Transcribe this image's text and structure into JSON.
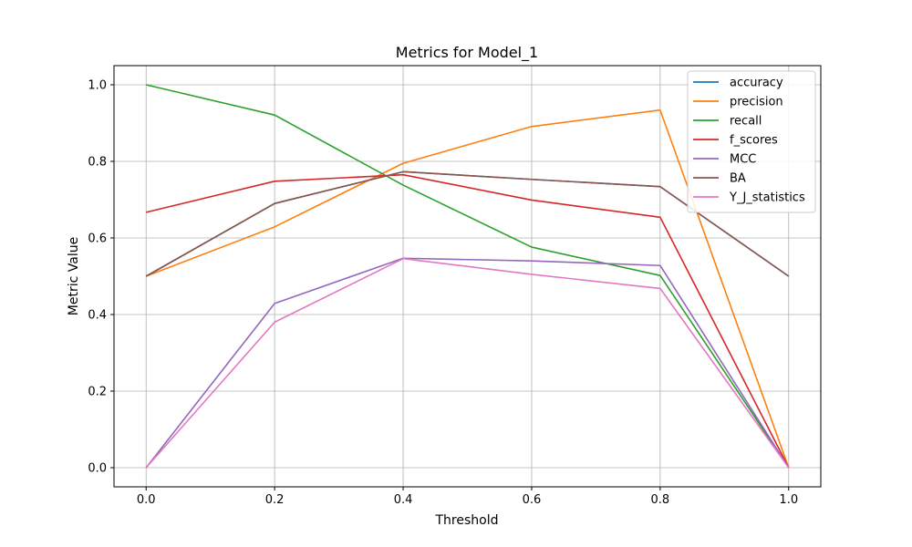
{
  "chart_data": {
    "type": "line",
    "title": "Metrics for Model_1",
    "xlabel": "Threshold",
    "ylabel": "Metric Value",
    "x": [
      0.0,
      0.2,
      0.4,
      0.6,
      0.8,
      1.0
    ],
    "xticks": [
      "0.0",
      "0.2",
      "0.4",
      "0.6",
      "0.8",
      "1.0"
    ],
    "yticks": [
      "0.0",
      "0.2",
      "0.4",
      "0.6",
      "0.8",
      "1.0"
    ],
    "xlim": [
      -0.05,
      1.05
    ],
    "ylim": [
      -0.05,
      1.05
    ],
    "grid": true,
    "legend_position": "top-right",
    "series": [
      {
        "name": "accuracy",
        "color": "#1f77b4",
        "values": [
          0.5,
          0.69,
          0.773,
          0.753,
          0.734,
          0.5
        ]
      },
      {
        "name": "precision",
        "color": "#ff7f0e",
        "values": [
          0.5,
          0.629,
          0.795,
          0.891,
          0.934,
          0.0
        ]
      },
      {
        "name": "recall",
        "color": "#2ca02c",
        "values": [
          1.0,
          0.921,
          0.738,
          0.576,
          0.502,
          0.0
        ]
      },
      {
        "name": "f_scores",
        "color": "#d62728",
        "values": [
          0.667,
          0.748,
          0.765,
          0.699,
          0.654,
          0.0
        ]
      },
      {
        "name": "MCC",
        "color": "#9467bd",
        "values": [
          0.0,
          0.429,
          0.547,
          0.54,
          0.528,
          0.0
        ]
      },
      {
        "name": "BA",
        "color": "#8c564b",
        "values": [
          0.5,
          0.69,
          0.773,
          0.753,
          0.734,
          0.5
        ]
      },
      {
        "name": "Y_J_statistics",
        "color": "#e377c2",
        "values": [
          0.0,
          0.38,
          0.546,
          0.505,
          0.468,
          0.0
        ]
      }
    ]
  }
}
